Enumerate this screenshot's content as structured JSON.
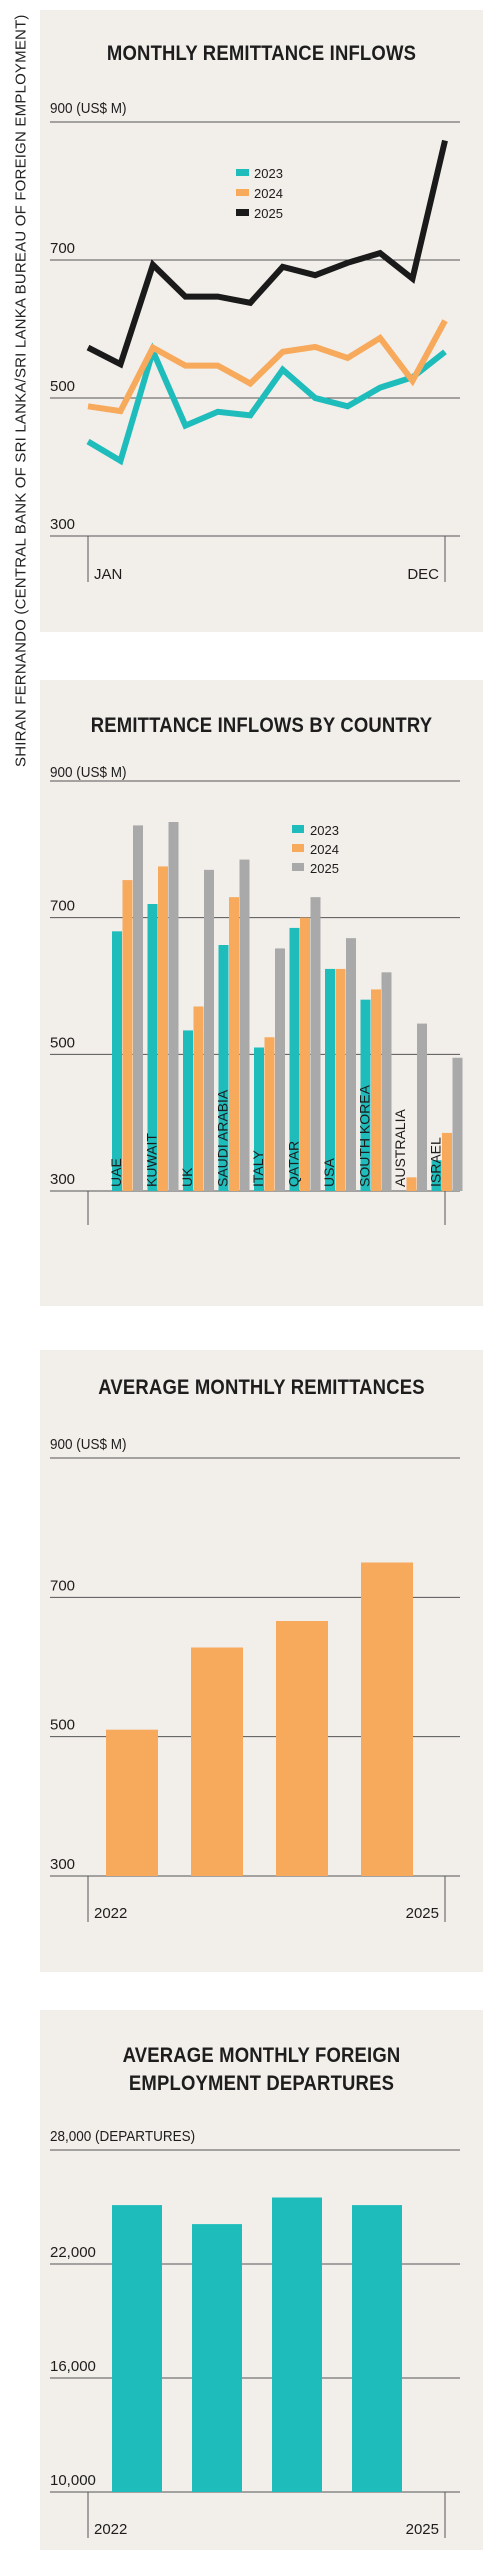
{
  "source_credit": "SHIRAN FERNANDO (CENTRAL BANK OF SRI LANKA/SRI LANKA BUREAU OF FOREIGN EMPLOYMENT)",
  "colors": {
    "y2023": "#1fbcbc",
    "y2024": "#f7a95c",
    "y2025": "#1a1a1a",
    "y2025_bar": "#a9a9a9",
    "panel": "#f2eeea",
    "grid": "#555555"
  },
  "chart_data": [
    {
      "type": "line",
      "title": "MONTHLY REMITTANCE INFLOWS",
      "unit_label": "(US$ M)",
      "ylim": [
        300,
        900
      ],
      "y_ticks": [
        900,
        700,
        500,
        300
      ],
      "x_labels": [
        "JAN",
        "DEC"
      ],
      "legend_placement": "top-center",
      "series": [
        {
          "name": "2023",
          "color": "#1fbcbc",
          "values": [
            437,
            409,
            568,
            460,
            480,
            475,
            541,
            500,
            488,
            515,
            530,
            567
          ]
        },
        {
          "name": "2024",
          "color": "#f7a95c",
          "values": [
            488,
            481,
            573,
            547,
            547,
            521,
            567,
            574,
            558,
            587,
            525,
            612
          ]
        },
        {
          "name": "2025",
          "color": "#1a1a1a",
          "values": [
            573,
            549,
            693,
            647,
            647,
            638,
            690,
            678,
            696,
            710,
            673,
            873
          ]
        }
      ]
    },
    {
      "type": "bar",
      "title": "REMITTANCE INFLOWS BY COUNTRY",
      "unit_label": "(US$ M)",
      "ylim": [
        300,
        900
      ],
      "y_ticks": [
        900,
        700,
        500,
        300
      ],
      "legend_placement": "top-right",
      "categories": [
        "UAE",
        "KUWAIT",
        "UK",
        "SAUDI ARABIA",
        "ITALY",
        "QATAR",
        "USA",
        "SOUTH KOREA",
        "AUSTRALIA",
        "ISRAEL"
      ],
      "series": [
        {
          "name": "2023",
          "color": "#1fbcbc",
          "values": [
            680,
            720,
            535,
            660,
            510,
            685,
            625,
            580,
            300,
            345
          ]
        },
        {
          "name": "2024",
          "color": "#f7a95c",
          "values": [
            755,
            775,
            570,
            730,
            525,
            700,
            625,
            595,
            320,
            385
          ]
        },
        {
          "name": "2025",
          "color": "#a9a9a9",
          "values": [
            835,
            840,
            770,
            785,
            655,
            730,
            670,
            620,
            545,
            495
          ]
        }
      ]
    },
    {
      "type": "bar",
      "title": "AVERAGE MONTHLY REMITTANCES",
      "unit_label": "(US$ M)",
      "ylim": [
        300,
        900
      ],
      "y_ticks": [
        900,
        700,
        500,
        300
      ],
      "x_labels": [
        "2022",
        "2025"
      ],
      "color": "#f7a95c",
      "values": [
        510,
        628,
        666,
        750
      ]
    },
    {
      "type": "bar",
      "title": [
        "AVERAGE MONTHLY FOREIGN",
        "EMPLOYMENT DEPARTURES"
      ],
      "unit_label": "(DEPARTURES)",
      "ylim": [
        10000,
        28000
      ],
      "y_ticks": [
        "28,000",
        "22,000",
        "16,000",
        "10,000"
      ],
      "x_labels": [
        "2022",
        "2025"
      ],
      "color": "#1fbcbc",
      "values": [
        25100,
        24100,
        25500,
        25100
      ]
    }
  ]
}
